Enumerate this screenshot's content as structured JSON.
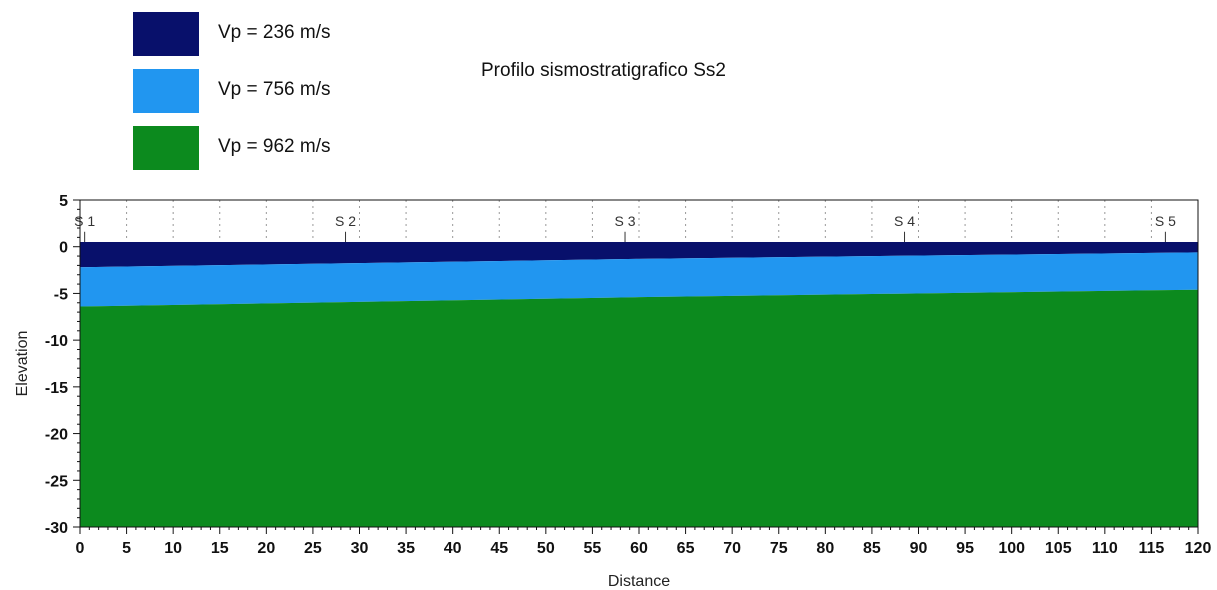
{
  "chart_data": {
    "type": "area",
    "title": "Profilo sismostratigrafico Ss2",
    "xlabel": "Distance",
    "ylabel": "Elevation",
    "xlim": [
      0,
      120
    ],
    "ylim": [
      -30,
      5
    ],
    "x_ticks": [
      0,
      5,
      10,
      15,
      20,
      25,
      30,
      35,
      40,
      45,
      50,
      55,
      60,
      65,
      70,
      75,
      80,
      85,
      90,
      95,
      100,
      105,
      110,
      115,
      120
    ],
    "y_ticks": [
      5,
      0,
      -5,
      -10,
      -15,
      -20,
      -25,
      -30
    ],
    "grid": "vertical dotted lines every 5 units, above elevation 0",
    "legend_placement": "top-left, outside plot",
    "layers": [
      {
        "name": "Vp = 236 m/s",
        "color": "#08106b",
        "top": [
          [
            0,
            0.5
          ],
          [
            120,
            0.5
          ]
        ],
        "bottom": [
          [
            0,
            -2.2
          ],
          [
            60,
            -1.3
          ],
          [
            120,
            -0.6
          ]
        ]
      },
      {
        "name": "Vp = 756 m/s",
        "color": "#2196f0",
        "top": [
          [
            0,
            -2.2
          ],
          [
            60,
            -1.3
          ],
          [
            120,
            -0.6
          ]
        ],
        "bottom": [
          [
            0,
            -6.4
          ],
          [
            60,
            -5.4
          ],
          [
            120,
            -4.6
          ]
        ]
      },
      {
        "name": "Vp = 962 m/s",
        "color": "#0c8a1e",
        "top": [
          [
            0,
            -6.4
          ],
          [
            60,
            -5.4
          ],
          [
            120,
            -4.6
          ]
        ],
        "bottom": [
          [
            0,
            -30
          ],
          [
            120,
            -30
          ]
        ]
      }
    ],
    "stations": [
      {
        "label": "S 1",
        "x": 0.5
      },
      {
        "label": "S 2",
        "x": 28.5
      },
      {
        "label": "S 3",
        "x": 58.5
      },
      {
        "label": "S 4",
        "x": 88.5
      },
      {
        "label": "S 5",
        "x": 116.5
      }
    ]
  }
}
